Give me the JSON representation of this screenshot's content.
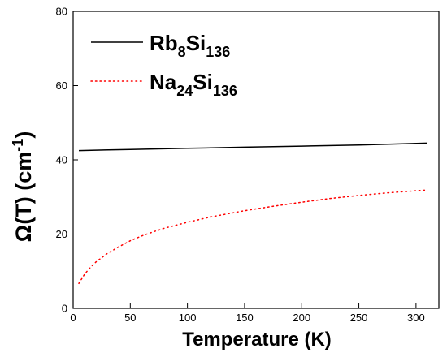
{
  "chart_data": {
    "type": "line",
    "xlabel": "Temperature (K)",
    "ylabel_main": "Ω(T) (cm",
    "ylabel_sup": "-1",
    "ylabel_close": ")",
    "xlim": [
      0,
      320
    ],
    "ylim": [
      0,
      80
    ],
    "xticks": [
      0,
      50,
      100,
      150,
      200,
      250,
      300
    ],
    "yticks": [
      0,
      20,
      40,
      60,
      80
    ],
    "legend_position": "top-left",
    "series": [
      {
        "label_main": "Rb",
        "label_sub1": "8",
        "label_mid": "Si",
        "label_sub2": "136",
        "color": "#000000",
        "style": "solid",
        "x": [
          5,
          50,
          100,
          150,
          200,
          250,
          310
        ],
        "y": [
          42.5,
          42.8,
          43.1,
          43.4,
          43.7,
          44.0,
          44.5
        ]
      },
      {
        "label_main": "Na",
        "label_sub1": "24",
        "label_mid": "Si",
        "label_sub2": "136",
        "color": "#ff0000",
        "style": "dotted",
        "x": [
          5,
          10,
          15,
          20,
          30,
          40,
          50,
          60,
          70,
          80,
          100,
          120,
          150,
          175,
          200,
          225,
          250,
          275,
          310
        ],
        "y": [
          6.7,
          9.2,
          11.0,
          12.5,
          14.8,
          16.6,
          18.2,
          19.5,
          20.6,
          21.6,
          23.2,
          24.6,
          26.3,
          27.5,
          28.6,
          29.6,
          30.4,
          31.1,
          31.9
        ]
      }
    ]
  }
}
